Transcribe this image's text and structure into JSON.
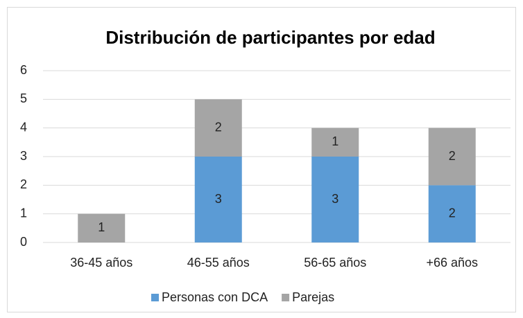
{
  "chart_data": {
    "type": "stacked_bar",
    "title": "Distribución de participantes por edad",
    "categories": [
      "36-45 años",
      "46-55 años",
      "56-65 años",
      "+66 años"
    ],
    "series": [
      {
        "name": "Personas con DCA",
        "color": "#5b9bd5",
        "values": [
          null,
          3,
          3,
          2
        ]
      },
      {
        "name": "Parejas",
        "color": "#a5a5a5",
        "values": [
          1,
          2,
          1,
          2
        ]
      }
    ],
    "ylim": [
      0,
      6
    ],
    "yticks": [
      0,
      1,
      2,
      3,
      4,
      5,
      6
    ],
    "grid": true,
    "legend": "bottom"
  }
}
